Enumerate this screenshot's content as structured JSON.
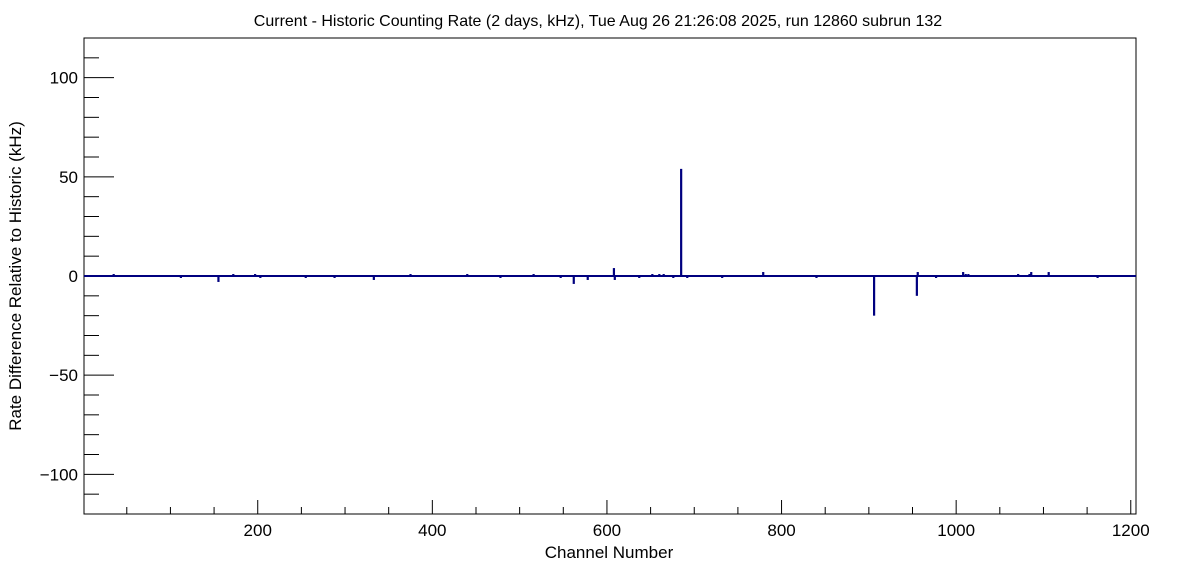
{
  "chart_data": {
    "type": "bar",
    "title": "Current - Historic Counting Rate (2 days, kHz), Tue Aug 26 21:26:08 2025, run 12860 subrun 132",
    "xlabel": "Channel Number",
    "ylabel": "Rate Difference Relative to Historic (kHz)",
    "xlim": [
      1,
      1206
    ],
    "ylim": [
      -120,
      120
    ],
    "x_major_ticks": [
      200,
      400,
      600,
      800,
      1000,
      1200
    ],
    "x_tick_labels": [
      "200",
      "400",
      "600",
      "800",
      "1000",
      "1200"
    ],
    "x_minor_step": 50,
    "y_major_ticks": [
      -100,
      -50,
      0,
      50,
      100
    ],
    "y_tick_labels": [
      "−100",
      "−50",
      "0",
      "50",
      "100"
    ],
    "y_minor_step": 10,
    "baseline": 0,
    "line_color": "#00007f",
    "grid": false,
    "spikes": [
      {
        "x": 35,
        "y": 1
      },
      {
        "x": 112,
        "y": -1
      },
      {
        "x": 155,
        "y": -3
      },
      {
        "x": 172,
        "y": 1
      },
      {
        "x": 197,
        "y": 1
      },
      {
        "x": 203,
        "y": -1
      },
      {
        "x": 255,
        "y": -1
      },
      {
        "x": 288,
        "y": -1
      },
      {
        "x": 333,
        "y": -2
      },
      {
        "x": 375,
        "y": 1
      },
      {
        "x": 440,
        "y": 1
      },
      {
        "x": 478,
        "y": -1
      },
      {
        "x": 516,
        "y": 1
      },
      {
        "x": 547,
        "y": -1
      },
      {
        "x": 562,
        "y": -4
      },
      {
        "x": 578,
        "y": -2
      },
      {
        "x": 608,
        "y": 4
      },
      {
        "x": 609,
        "y": -2
      },
      {
        "x": 637,
        "y": -1
      },
      {
        "x": 652,
        "y": 1
      },
      {
        "x": 660,
        "y": 1
      },
      {
        "x": 665,
        "y": 1
      },
      {
        "x": 676,
        "y": -1
      },
      {
        "x": 685,
        "y": 54
      },
      {
        "x": 692,
        "y": -1
      },
      {
        "x": 732,
        "y": -1
      },
      {
        "x": 779,
        "y": 2
      },
      {
        "x": 840,
        "y": -1
      },
      {
        "x": 906,
        "y": -20
      },
      {
        "x": 955,
        "y": -10
      },
      {
        "x": 956,
        "y": 2
      },
      {
        "x": 977,
        "y": -1
      },
      {
        "x": 1008,
        "y": 2
      },
      {
        "x": 1011,
        "y": 1
      },
      {
        "x": 1014,
        "y": 1
      },
      {
        "x": 1071,
        "y": 1
      },
      {
        "x": 1084,
        "y": 1
      },
      {
        "x": 1086,
        "y": 2
      },
      {
        "x": 1106,
        "y": 2
      },
      {
        "x": 1162,
        "y": -1
      }
    ]
  }
}
